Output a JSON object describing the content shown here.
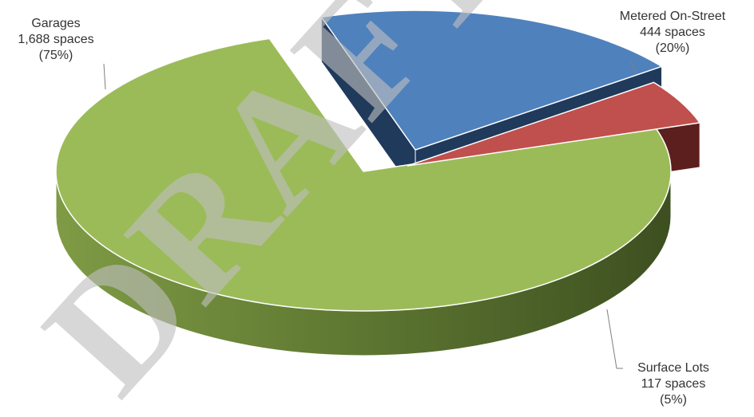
{
  "chart_data": {
    "type": "pie",
    "style": "3d-exploded",
    "slices": [
      {
        "name": "Garages",
        "value": 1688,
        "value_label": "1,688 spaces",
        "percent_label": "(75%)",
        "color": "#9bbb59"
      },
      {
        "name": "Metered On-Street",
        "value": 444,
        "value_label": "444 spaces",
        "percent_label": "(20%)",
        "color": "#4f81bd"
      },
      {
        "name": "Surface Lots",
        "value": 117,
        "value_label": "117 spaces",
        "percent_label": "(5%)",
        "color": "#c0504d"
      }
    ]
  },
  "watermark": "DRAFT"
}
